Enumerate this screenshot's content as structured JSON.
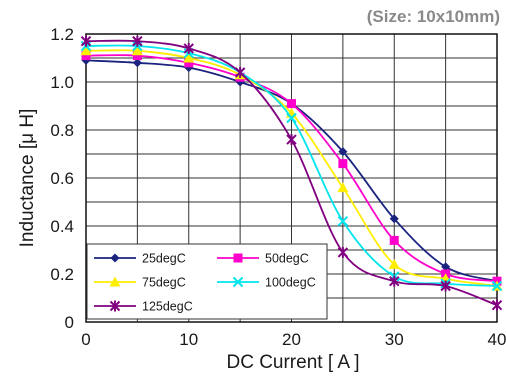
{
  "chart_data": {
    "type": "line",
    "annotation": "(Size: 10x10mm)",
    "xlabel": "DC Current [ A ]",
    "ylabel": "Inductance [μ H]",
    "xlim": [
      0,
      40
    ],
    "ylim": [
      0,
      1.2
    ],
    "x_ticks": [
      "0",
      "10",
      "20",
      "30",
      "40"
    ],
    "y_ticks": [
      "0",
      "0.2",
      "0.4",
      "0.6",
      "0.8",
      "1.0",
      "1.2"
    ],
    "grid": true,
    "legend_position": "bottom-left",
    "x": [
      0,
      5,
      10,
      15,
      20,
      25,
      30,
      35,
      40
    ],
    "series": [
      {
        "name": "25degC",
        "color": "#1a237e",
        "marker": "diamond",
        "values": [
          1.09,
          1.08,
          1.06,
          1.0,
          0.91,
          0.71,
          0.43,
          0.23,
          0.17
        ]
      },
      {
        "name": "50degC",
        "color": "#ff00cc",
        "marker": "square",
        "values": [
          1.11,
          1.11,
          1.08,
          1.02,
          0.91,
          0.66,
          0.34,
          0.2,
          0.17
        ]
      },
      {
        "name": "75degC",
        "color": "#ffee00",
        "marker": "triangle",
        "values": [
          1.13,
          1.13,
          1.1,
          1.03,
          0.87,
          0.56,
          0.24,
          0.18,
          0.15
        ]
      },
      {
        "name": "100degC",
        "color": "#00e5ee",
        "marker": "x",
        "values": [
          1.15,
          1.15,
          1.12,
          1.04,
          0.85,
          0.42,
          0.19,
          0.16,
          0.15
        ]
      },
      {
        "name": "125degC",
        "color": "#800080",
        "marker": "asterisk",
        "values": [
          1.17,
          1.17,
          1.14,
          1.04,
          0.76,
          0.29,
          0.17,
          0.15,
          0.07
        ]
      }
    ]
  }
}
